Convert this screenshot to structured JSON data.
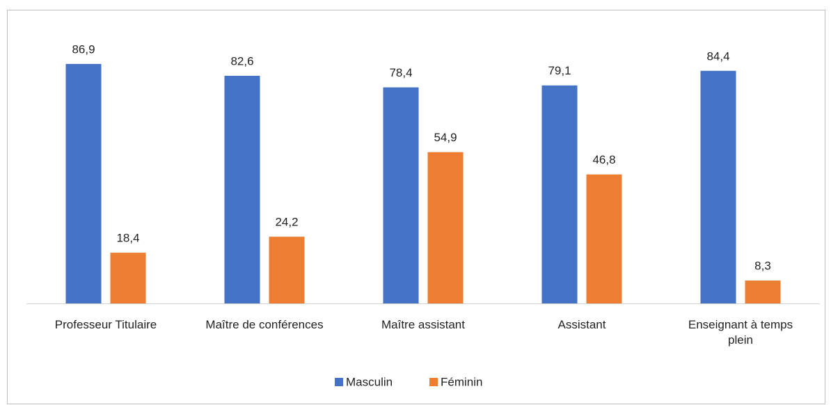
{
  "chart_data": {
    "type": "bar",
    "categories": [
      "Professeur Titulaire",
      "Maître de conférences",
      "Maître assistant",
      "Assistant",
      "Enseignant à temps plein"
    ],
    "series": [
      {
        "name": "Masculin",
        "color": "#4472c4",
        "values": [
          86.9,
          82.6,
          78.4,
          79.1,
          84.4
        ],
        "value_labels": [
          "86,9",
          "82,6",
          "78,4",
          "79,1",
          "84,4"
        ]
      },
      {
        "name": "Féminin",
        "color": "#ed7d31",
        "values": [
          18.4,
          24.2,
          54.9,
          46.8,
          8.3
        ],
        "value_labels": [
          "18,4",
          "24,2",
          "54,9",
          "46,8",
          "8,3"
        ]
      }
    ],
    "ylim": [
      0,
      100
    ],
    "legend": "bottom"
  }
}
